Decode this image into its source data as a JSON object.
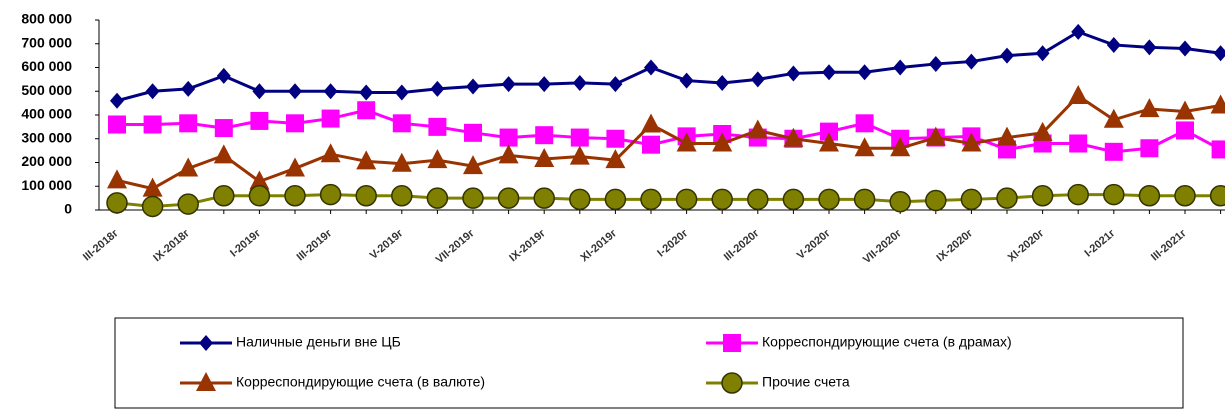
{
  "chart_data": {
    "type": "line",
    "categories": [
      "III-2018г",
      null,
      "IX-2018г",
      null,
      "I-2019г",
      null,
      "III-2019г",
      null,
      "V-2019г",
      null,
      "VII-2019г",
      null,
      "IX-2019г",
      null,
      "XI-2019г",
      null,
      "I-2020г",
      null,
      "III-2020г",
      null,
      "V-2020г",
      null,
      "VII-2020г",
      null,
      "IX-2020г",
      null,
      "XI-2020г",
      null,
      "I-2021г",
      null,
      "III-2021г",
      null
    ],
    "series": [
      {
        "name": "Наличные деньги вне ЦБ",
        "color": "#000080",
        "marker": "diamond",
        "values": [
          460000,
          500000,
          510000,
          565000,
          500000,
          500000,
          500000,
          495000,
          495000,
          510000,
          520000,
          530000,
          530000,
          535000,
          530000,
          600000,
          545000,
          535000,
          550000,
          575000,
          580000,
          580000,
          600000,
          615000,
          625000,
          650000,
          660000,
          750000,
          695000,
          685000,
          680000,
          660000
        ]
      },
      {
        "name": "Корреспондирующие счета (в драмах)",
        "color": "#ff00ff",
        "marker": "square",
        "values": [
          360000,
          360000,
          365000,
          345000,
          375000,
          365000,
          385000,
          420000,
          365000,
          350000,
          325000,
          305000,
          315000,
          305000,
          300000,
          275000,
          310000,
          320000,
          305000,
          300000,
          330000,
          365000,
          300000,
          305000,
          310000,
          255000,
          280000,
          280000,
          245000,
          260000,
          335000,
          255000
        ]
      },
      {
        "name": "Корреспондирующие счета (в валюте)",
        "color": "#993300",
        "marker": "triangle",
        "values": [
          125000,
          90000,
          175000,
          230000,
          120000,
          175000,
          235000,
          205000,
          195000,
          210000,
          185000,
          230000,
          215000,
          225000,
          210000,
          360000,
          280000,
          280000,
          335000,
          300000,
          280000,
          260000,
          260000,
          305000,
          280000,
          305000,
          325000,
          480000,
          380000,
          425000,
          415000,
          440000
        ]
      },
      {
        "name": "Прочие счета",
        "color": "#808000",
        "marker": "circle",
        "values": [
          30000,
          15000,
          25000,
          60000,
          60000,
          60000,
          65000,
          60000,
          60000,
          50000,
          50000,
          50000,
          50000,
          45000,
          45000,
          45000,
          45000,
          45000,
          45000,
          45000,
          45000,
          45000,
          35000,
          40000,
          45000,
          50000,
          60000,
          65000,
          65000,
          60000,
          60000,
          60000
        ]
      }
    ],
    "ylim": [
      0,
      800000
    ],
    "yticks": [
      {
        "value": 0,
        "label": "0"
      },
      {
        "value": 100000,
        "label": "100 000"
      },
      {
        "value": 200000,
        "label": "200 000"
      },
      {
        "value": 300000,
        "label": "300 000"
      },
      {
        "value": 400000,
        "label": "400 000"
      },
      {
        "value": 500000,
        "label": "500 000"
      },
      {
        "value": 600000,
        "label": "600 000"
      },
      {
        "value": 700000,
        "label": "700 000"
      },
      {
        "value": 800000,
        "label": "800 000"
      }
    ],
    "grid": false
  }
}
